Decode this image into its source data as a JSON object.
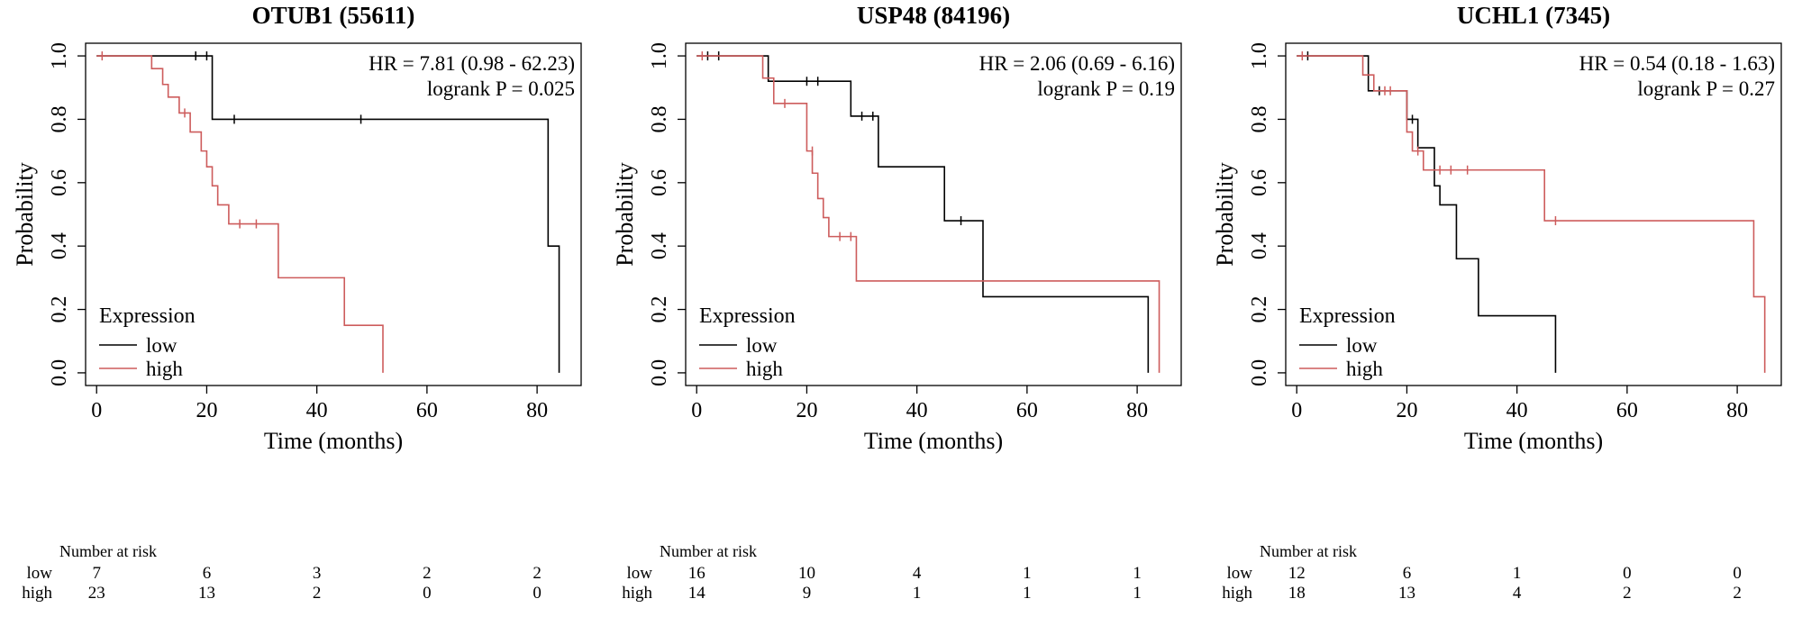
{
  "colors": {
    "low": "#000000",
    "high": "#cd5c5c",
    "axis": "#000000",
    "background": "#ffffff"
  },
  "chart_data": [
    {
      "type": "line",
      "subtype": "kaplan-meier",
      "title": "OTUB1 (55611)",
      "xlabel": "Time (months)",
      "ylabel": "Probability",
      "xlim": [
        -2,
        88
      ],
      "ylim": [
        -0.04,
        1.04
      ],
      "xticks": [
        0,
        20,
        40,
        60,
        80
      ],
      "yticks": [
        0,
        0.2,
        0.4,
        0.6,
        0.8,
        1
      ],
      "grid": false,
      "annotation": {
        "hr": "HR = 7.81 (0.98 - 62.23)",
        "logrank": "logrank P = 0.025"
      },
      "legend": {
        "title": "Expression",
        "position": "bottom-left",
        "entries": [
          {
            "label": "low",
            "color": "#000000"
          },
          {
            "label": "high",
            "color": "#cd5c5c"
          }
        ]
      },
      "series": [
        {
          "name": "low",
          "color": "#000000",
          "points": [
            [
              0,
              1.0
            ],
            [
              21,
              0.8
            ],
            [
              82,
              0.4
            ],
            [
              84,
              0.0
            ]
          ],
          "censors": [
            [
              18,
              1.0
            ],
            [
              20,
              1.0
            ],
            [
              25,
              0.8
            ],
            [
              48,
              0.8
            ]
          ]
        },
        {
          "name": "high",
          "color": "#cd5c5c",
          "points": [
            [
              0,
              1.0
            ],
            [
              10,
              0.96
            ],
            [
              12,
              0.91
            ],
            [
              13,
              0.87
            ],
            [
              15,
              0.82
            ],
            [
              17,
              0.76
            ],
            [
              19,
              0.7
            ],
            [
              20,
              0.65
            ],
            [
              21,
              0.59
            ],
            [
              22,
              0.53
            ],
            [
              24,
              0.47
            ],
            [
              33,
              0.3
            ],
            [
              45,
              0.15
            ],
            [
              52,
              0.0
            ]
          ],
          "censors": [
            [
              1,
              1.0
            ],
            [
              16,
              0.82
            ],
            [
              26,
              0.47
            ],
            [
              29,
              0.47
            ]
          ]
        }
      ],
      "risk_table": {
        "label": "Number at risk",
        "times": [
          0,
          20,
          40,
          60,
          80
        ],
        "rows": [
          {
            "name": "low",
            "color": "#000000",
            "counts": [
              7,
              6,
              3,
              2,
              2
            ]
          },
          {
            "name": "high",
            "color": "#cd5c5c",
            "counts": [
              23,
              13,
              2,
              0,
              0
            ]
          }
        ]
      }
    },
    {
      "type": "line",
      "subtype": "kaplan-meier",
      "title": "USP48 (84196)",
      "xlabel": "Time (months)",
      "ylabel": "Probability",
      "xlim": [
        -2,
        88
      ],
      "ylim": [
        -0.04,
        1.04
      ],
      "xticks": [
        0,
        20,
        40,
        60,
        80
      ],
      "yticks": [
        0,
        0.2,
        0.4,
        0.6,
        0.8,
        1
      ],
      "grid": false,
      "annotation": {
        "hr": "HR = 2.06 (0.69 - 6.16)",
        "logrank": "logrank P = 0.19"
      },
      "legend": {
        "title": "Expression",
        "position": "bottom-left",
        "entries": [
          {
            "label": "low",
            "color": "#000000"
          },
          {
            "label": "high",
            "color": "#cd5c5c"
          }
        ]
      },
      "series": [
        {
          "name": "low",
          "color": "#000000",
          "points": [
            [
              0,
              1.0
            ],
            [
              13,
              0.92
            ],
            [
              28,
              0.81
            ],
            [
              33,
              0.65
            ],
            [
              45,
              0.48
            ],
            [
              52,
              0.24
            ],
            [
              82,
              0.0
            ]
          ],
          "censors": [
            [
              2,
              1.0
            ],
            [
              4,
              1.0
            ],
            [
              20,
              0.92
            ],
            [
              22,
              0.92
            ],
            [
              30,
              0.81
            ],
            [
              32,
              0.81
            ],
            [
              48,
              0.48
            ]
          ]
        },
        {
          "name": "high",
          "color": "#cd5c5c",
          "points": [
            [
              0,
              1.0
            ],
            [
              12,
              0.93
            ],
            [
              14,
              0.85
            ],
            [
              20,
              0.7
            ],
            [
              21,
              0.63
            ],
            [
              22,
              0.55
            ],
            [
              23,
              0.49
            ],
            [
              24,
              0.43
            ],
            [
              29,
              0.29
            ],
            [
              84,
              0.0
            ]
          ],
          "censors": [
            [
              1,
              1.0
            ],
            [
              16,
              0.85
            ],
            [
              21,
              0.7
            ],
            [
              26,
              0.43
            ],
            [
              28,
              0.43
            ]
          ]
        }
      ],
      "risk_table": {
        "label": "Number at risk",
        "times": [
          0,
          20,
          40,
          60,
          80
        ],
        "rows": [
          {
            "name": "low",
            "color": "#000000",
            "counts": [
              16,
              10,
              4,
              1,
              1
            ]
          },
          {
            "name": "high",
            "color": "#cd5c5c",
            "counts": [
              14,
              9,
              1,
              1,
              1
            ]
          }
        ]
      }
    },
    {
      "type": "line",
      "subtype": "kaplan-meier",
      "title": "UCHL1 (7345)",
      "xlabel": "Time (months)",
      "ylabel": "Probability",
      "xlim": [
        -2,
        88
      ],
      "ylim": [
        -0.04,
        1.04
      ],
      "xticks": [
        0,
        20,
        40,
        60,
        80
      ],
      "yticks": [
        0,
        0.2,
        0.4,
        0.6,
        0.8,
        1
      ],
      "grid": false,
      "annotation": {
        "hr": "HR = 0.54 (0.18 - 1.63)",
        "logrank": "logrank P = 0.27"
      },
      "legend": {
        "title": "Expression",
        "position": "bottom-left",
        "entries": [
          {
            "label": "low",
            "color": "#000000"
          },
          {
            "label": "high",
            "color": "#cd5c5c"
          }
        ]
      },
      "series": [
        {
          "name": "low",
          "color": "#000000",
          "points": [
            [
              0,
              1.0
            ],
            [
              13,
              0.89
            ],
            [
              20,
              0.8
            ],
            [
              22,
              0.71
            ],
            [
              25,
              0.59
            ],
            [
              26,
              0.53
            ],
            [
              29,
              0.36
            ],
            [
              33,
              0.18
            ],
            [
              47,
              0.0
            ]
          ],
          "censors": [
            [
              2,
              1.0
            ],
            [
              15,
              0.89
            ],
            [
              21,
              0.8
            ]
          ]
        },
        {
          "name": "high",
          "color": "#cd5c5c",
          "points": [
            [
              0,
              1.0
            ],
            [
              12,
              0.94
            ],
            [
              14,
              0.89
            ],
            [
              20,
              0.76
            ],
            [
              21,
              0.7
            ],
            [
              23,
              0.64
            ],
            [
              45,
              0.48
            ],
            [
              83,
              0.24
            ],
            [
              85,
              0.0
            ]
          ],
          "censors": [
            [
              1,
              1.0
            ],
            [
              16,
              0.89
            ],
            [
              17,
              0.89
            ],
            [
              22,
              0.7
            ],
            [
              26,
              0.64
            ],
            [
              28,
              0.64
            ],
            [
              31,
              0.64
            ],
            [
              47,
              0.48
            ]
          ]
        }
      ],
      "risk_table": {
        "label": "Number at risk",
        "times": [
          0,
          20,
          40,
          60,
          80
        ],
        "rows": [
          {
            "name": "low",
            "color": "#000000",
            "counts": [
              12,
              6,
              1,
              0,
              0
            ]
          },
          {
            "name": "high",
            "color": "#cd5c5c",
            "counts": [
              18,
              13,
              4,
              2,
              2
            ]
          }
        ]
      }
    }
  ]
}
